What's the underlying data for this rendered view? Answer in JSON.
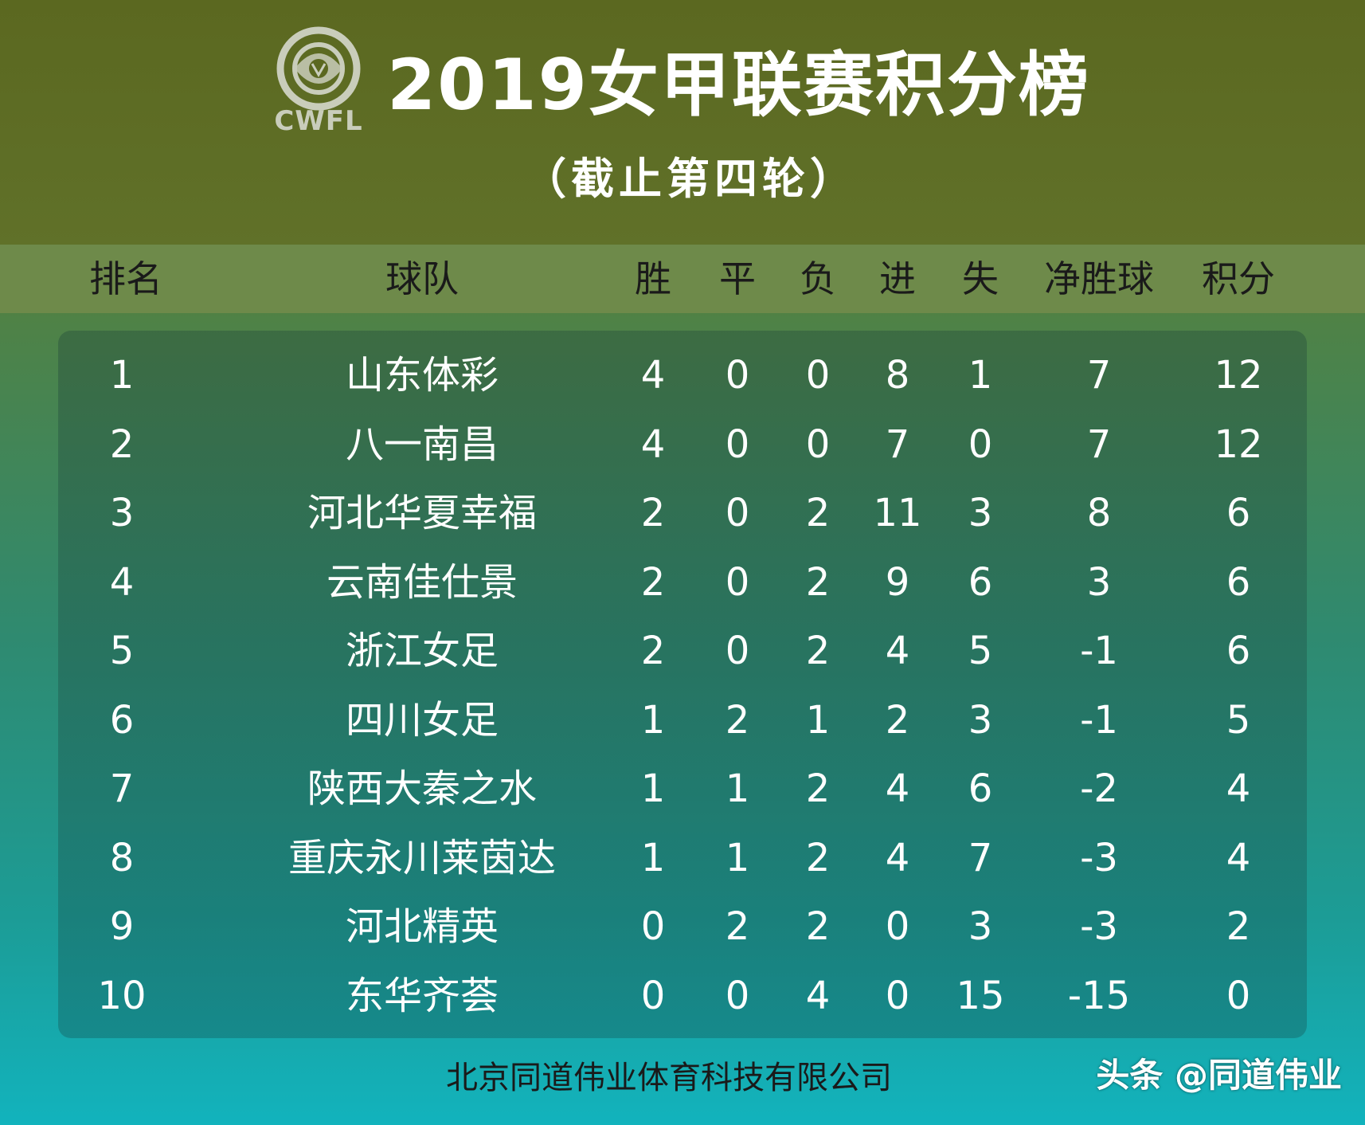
{
  "header": {
    "logo_text": "CWFL",
    "title": "2019女甲联赛积分榜",
    "subtitle": "（截止第四轮）"
  },
  "columns": {
    "rank": "排名",
    "team": "球队",
    "win": "胜",
    "draw": "平",
    "loss": "负",
    "gf": "进",
    "ga": "失",
    "gd": "净胜球",
    "pts": "积分"
  },
  "rows": [
    {
      "rank": "1",
      "team": "山东体彩",
      "win": "4",
      "draw": "0",
      "loss": "0",
      "gf": "8",
      "ga": "1",
      "gd": "7",
      "pts": "12"
    },
    {
      "rank": "2",
      "team": "八一南昌",
      "win": "4",
      "draw": "0",
      "loss": "0",
      "gf": "7",
      "ga": "0",
      "gd": "7",
      "pts": "12"
    },
    {
      "rank": "3",
      "team": "河北华夏幸福",
      "win": "2",
      "draw": "0",
      "loss": "2",
      "gf": "11",
      "ga": "3",
      "gd": "8",
      "pts": "6"
    },
    {
      "rank": "4",
      "team": "云南佳仕景",
      "win": "2",
      "draw": "0",
      "loss": "2",
      "gf": "9",
      "ga": "6",
      "gd": "3",
      "pts": "6"
    },
    {
      "rank": "5",
      "team": "浙江女足",
      "win": "2",
      "draw": "0",
      "loss": "2",
      "gf": "4",
      "ga": "5",
      "gd": "-1",
      "pts": "6"
    },
    {
      "rank": "6",
      "team": "四川女足",
      "win": "1",
      "draw": "2",
      "loss": "1",
      "gf": "2",
      "ga": "3",
      "gd": "-1",
      "pts": "5"
    },
    {
      "rank": "7",
      "team": "陕西大秦之水",
      "win": "1",
      "draw": "1",
      "loss": "2",
      "gf": "4",
      "ga": "6",
      "gd": "-2",
      "pts": "4"
    },
    {
      "rank": "8",
      "team": "重庆永川莱茵达",
      "win": "1",
      "draw": "1",
      "loss": "2",
      "gf": "4",
      "ga": "7",
      "gd": "-3",
      "pts": "4"
    },
    {
      "rank": "9",
      "team": "河北精英",
      "win": "0",
      "draw": "2",
      "loss": "2",
      "gf": "0",
      "ga": "3",
      "gd": "-3",
      "pts": "2"
    },
    {
      "rank": "10",
      "team": "东华齐荟",
      "win": "0",
      "draw": "0",
      "loss": "4",
      "gf": "0",
      "ga": "15",
      "gd": "-15",
      "pts": "0"
    }
  ],
  "footer": {
    "company": "北京同道伟业体育科技有限公司",
    "watermark": "头条 @同道伟业"
  },
  "colors": {
    "header_bg": "#5b6820",
    "column_header_bg": "#6e8a4a",
    "bottom_bg": "#12b3bd",
    "text_light": "#ffffff",
    "text_dark": "#1a1a1a"
  },
  "icons": {
    "logo": "cwfl-rose-logo-icon"
  }
}
